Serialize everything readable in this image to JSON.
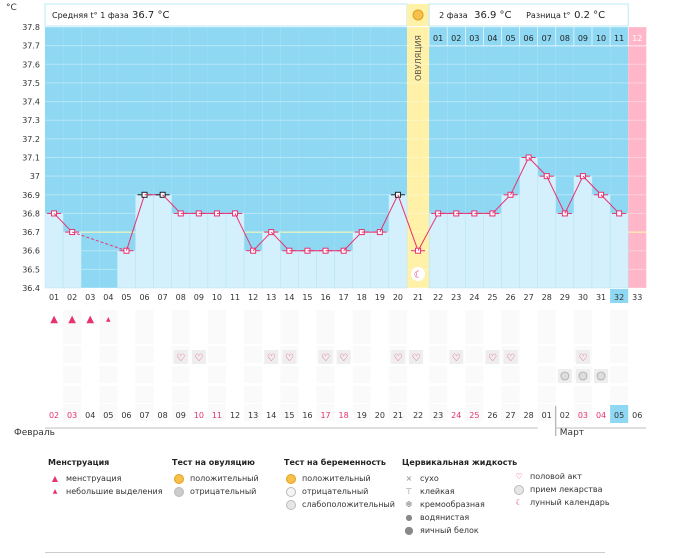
{
  "header": {
    "phase1_label": "Средняя t° 1 фаза",
    "phase1_value": "36.7 °C",
    "phase2_label": "2 фаза",
    "phase2_value": "36.9 °C",
    "diff_label": "Разница t°",
    "diff_value": "0.2 °C",
    "unit": "°C"
  },
  "chart_data": {
    "type": "line",
    "cycle_days": [
      "01",
      "02",
      "03",
      "04",
      "05",
      "06",
      "07",
      "08",
      "09",
      "10",
      "11",
      "12",
      "13",
      "14",
      "15",
      "16",
      "17",
      "18",
      "19",
      "20",
      "21",
      "22",
      "23",
      "24",
      "25",
      "26",
      "27",
      "28",
      "29",
      "30",
      "31",
      "32",
      "33"
    ],
    "temps": [
      36.8,
      36.7,
      null,
      null,
      36.6,
      36.9,
      36.9,
      36.8,
      36.8,
      36.8,
      36.8,
      36.6,
      36.7,
      36.6,
      36.6,
      36.6,
      36.6,
      36.7,
      36.7,
      36.9,
      36.6,
      36.8,
      36.8,
      36.8,
      36.8,
      36.9,
      37.1,
      37.0,
      36.8,
      37.0,
      36.9,
      36.8,
      null
    ],
    "ylim": [
      36.4,
      37.8
    ],
    "yticks": [
      "36.4",
      "36.5",
      "36.6",
      "36.7",
      "36.8",
      "36.9",
      "37",
      "37.1",
      "37.2",
      "37.3",
      "37.4",
      "37.5",
      "37.6",
      "37.7",
      "37.8"
    ],
    "coverline": 36.7,
    "ovulation_day": 21,
    "ovulation_label": "ОВУЛЯЦИЯ",
    "phase2_days": [
      "01",
      "02",
      "03",
      "04",
      "05",
      "06",
      "07",
      "08",
      "09",
      "10",
      "11",
      "12"
    ],
    "dates": [
      "02",
      "03",
      "04",
      "05",
      "06",
      "07",
      "08",
      "09",
      "10",
      "11",
      "12",
      "13",
      "14",
      "15",
      "16",
      "17",
      "18",
      "19",
      "20",
      "21",
      "22",
      "23",
      "24",
      "25",
      "26",
      "27",
      "28",
      "01",
      "02",
      "03",
      "04",
      "05",
      "06"
    ],
    "red_dates": [
      1,
      2,
      9,
      10,
      16,
      17,
      23,
      24,
      30,
      31
    ],
    "month1": "Февраль",
    "month2": "Март",
    "menstruation_days": [
      1,
      2,
      3
    ],
    "light_days": [
      4
    ],
    "sex_days": [
      8,
      9,
      13,
      14,
      16,
      17,
      20,
      21,
      23,
      25,
      26,
      30
    ],
    "medicine_days": [
      29,
      30,
      31
    ],
    "circle_dates": [
      14,
      20
    ],
    "moon_day": 21
  },
  "legend": {
    "menstruation": {
      "title": "Менструация",
      "items": [
        "менструация",
        "небольшие выделения"
      ]
    },
    "ovulation_test": {
      "title": "Тест на овуляцию",
      "items": [
        "положительный",
        "отрицательный"
      ]
    },
    "pregnancy_test": {
      "title": "Тест на беременность",
      "items": [
        "положительный",
        "отрицательный",
        "слабоположительный"
      ]
    },
    "cervical": {
      "title": "Цервикальная жидкость",
      "items": [
        "сухо",
        "клейкая",
        "кремообразная",
        "водянистая",
        "яичный белок"
      ]
    },
    "other": {
      "items": [
        "половой акт",
        "прием лекарства",
        "лунный календарь"
      ]
    }
  },
  "colors": {
    "blue": "#8fd8f3",
    "lightblue": "#d4f0fc",
    "ovulation": "#fff1a8",
    "pink": "#ffb6c8",
    "line": "#e8316f",
    "selected": "#8fd8f3"
  }
}
